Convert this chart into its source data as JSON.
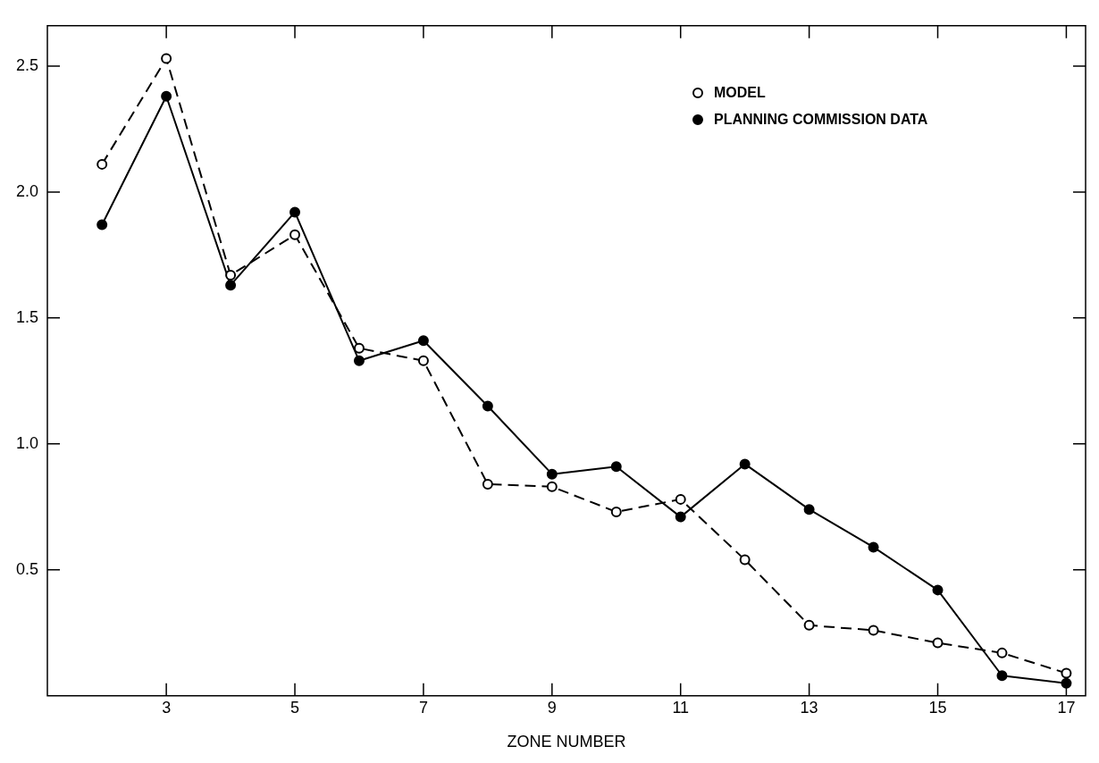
{
  "chart_data": {
    "type": "line",
    "xlabel": "ZONE NUMBER",
    "x": [
      2,
      3,
      4,
      5,
      6,
      7,
      8,
      9,
      10,
      11,
      12,
      13,
      14,
      15,
      16,
      17
    ],
    "xlim": [
      1.15,
      17.3
    ],
    "xticks": [
      3,
      5,
      7,
      9,
      11,
      13,
      15,
      17
    ],
    "ylim": [
      0,
      2.66
    ],
    "yticks": [
      0.5,
      {
        "value": 1,
        "label": "1.0"
      },
      1.5,
      {
        "value": 2,
        "label": "2.0"
      },
      2.5
    ],
    "series": [
      {
        "name": "MODEL",
        "color": "#000000",
        "line_style": "dashed",
        "marker": "circle",
        "values": [
          2.11,
          2.53,
          1.67,
          1.83,
          1.38,
          1.33,
          0.84,
          0.83,
          0.73,
          0.78,
          0.54,
          0.28,
          0.26,
          0.21,
          0.17,
          0.09
        ]
      },
      {
        "name": "PLANNING COMMISSION DATA",
        "color": "#000000",
        "line_style": "solid",
        "marker": "circle",
        "values": [
          1.87,
          2.38,
          1.63,
          1.92,
          1.33,
          1.41,
          1.15,
          0.88,
          0.91,
          0.71,
          0.92,
          0.74,
          0.59,
          0.42,
          0.08,
          0.05
        ]
      }
    ],
    "grid": false,
    "legend": "top right"
  }
}
